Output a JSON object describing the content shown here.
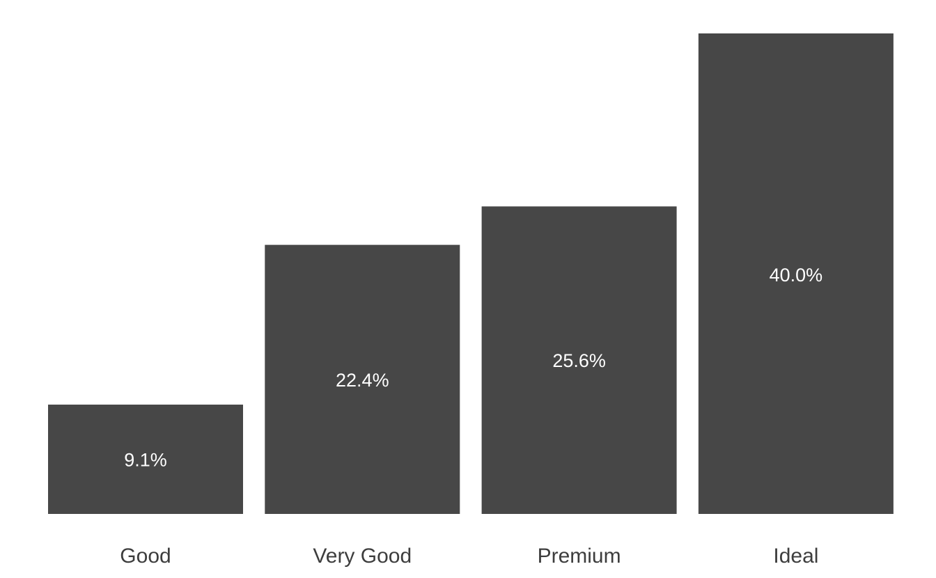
{
  "chart_data": {
    "type": "bar",
    "title": "",
    "xlabel": "",
    "ylabel": "",
    "categories": [
      "Good",
      "Very Good",
      "Premium",
      "Ideal"
    ],
    "values": [
      9.1,
      22.4,
      25.6,
      40.0
    ],
    "data_labels": [
      "9.1%",
      "22.4%",
      "25.6%",
      "40.0%"
    ],
    "ylim": [
      0,
      40.0
    ],
    "grid": false,
    "axes_visible": false,
    "legend": "none",
    "bar_color": "#474747",
    "label_color": "#ffffff",
    "tick_color": "#3d3d3d"
  }
}
